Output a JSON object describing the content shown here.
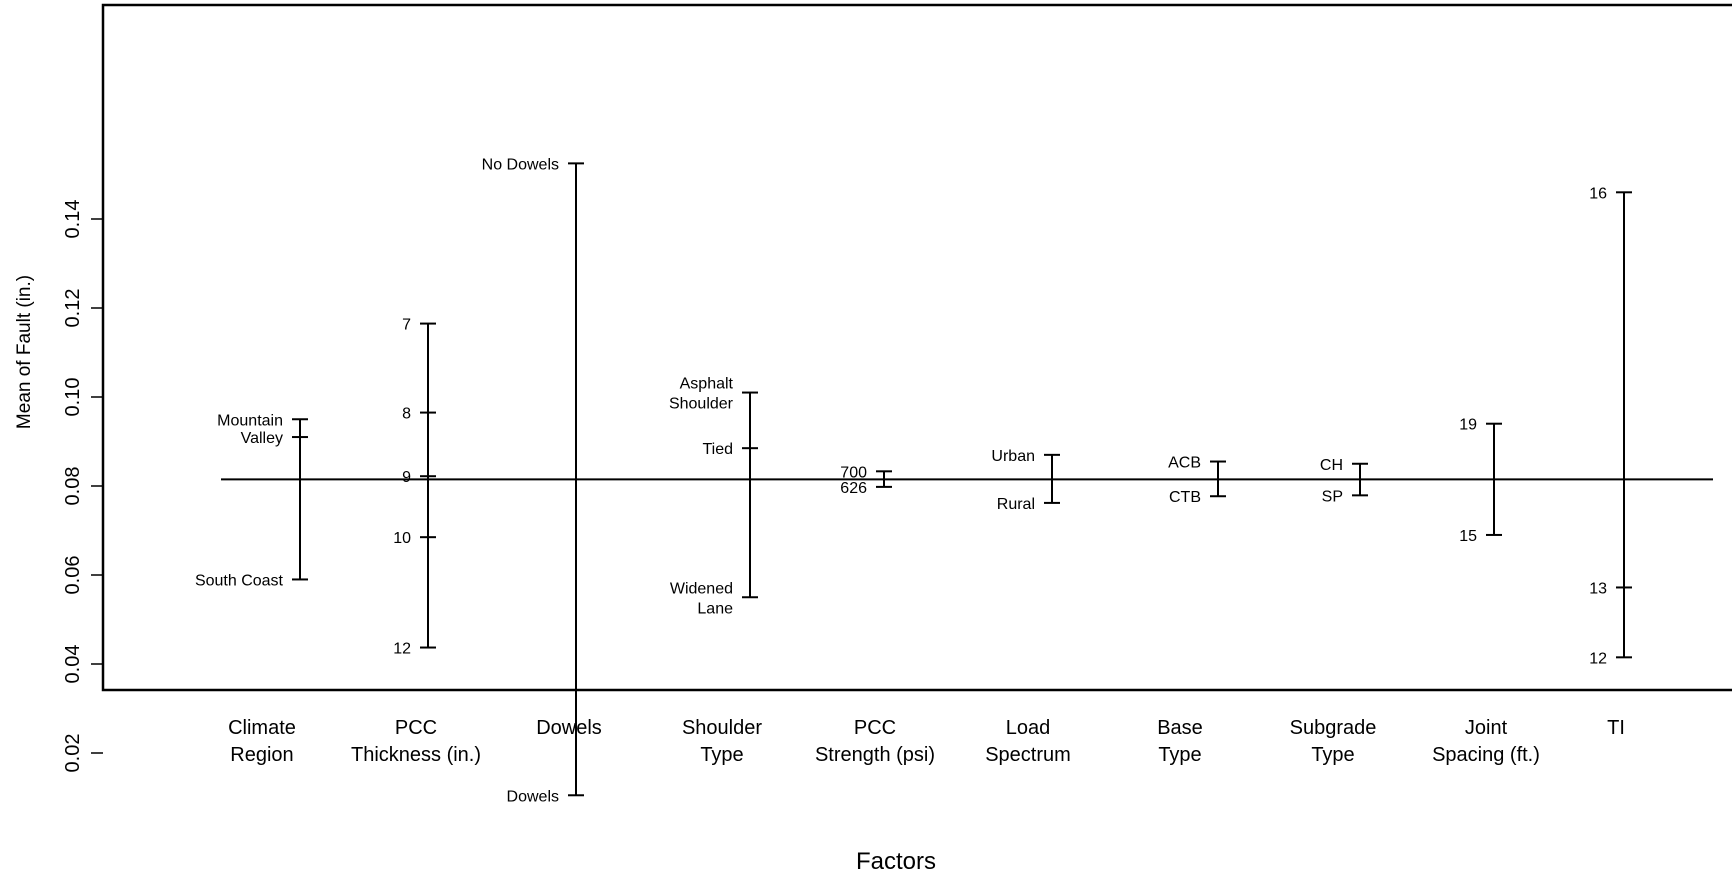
{
  "chart_data": {
    "type": "main-effects",
    "title": "",
    "xlabel": "Factors",
    "ylabel": "Mean of Fault (in.)",
    "ylim": [
      0.0,
      0.155
    ],
    "y_ticks": [
      "0.02",
      "0.04",
      "0.06",
      "0.08",
      "0.10",
      "0.12",
      "0.14"
    ],
    "y_tick_values": [
      0.02,
      0.04,
      0.06,
      0.08,
      0.1,
      0.12,
      0.14
    ],
    "grand_mean": 0.0815,
    "grid": false,
    "factors": [
      {
        "name_lines": [
          "Climate",
          "Region"
        ],
        "label_side": "left",
        "levels": [
          {
            "label_lines": [
              "Mountain"
            ],
            "value": 0.095
          },
          {
            "label_lines": [
              "Valley"
            ],
            "value": 0.091
          },
          {
            "label_lines": [
              "South Coast"
            ],
            "value": 0.059
          }
        ]
      },
      {
        "name_lines": [
          "PCC",
          "Thickness (in.)"
        ],
        "label_side": "left",
        "levels": [
          {
            "label_lines": [
              "7"
            ],
            "value": 0.1165
          },
          {
            "label_lines": [
              "8"
            ],
            "value": 0.0965
          },
          {
            "label_lines": [
              "9"
            ],
            "value": 0.0822
          },
          {
            "label_lines": [
              "10"
            ],
            "value": 0.0685
          },
          {
            "label_lines": [
              "12"
            ],
            "value": 0.0437
          }
        ]
      },
      {
        "name_lines": [
          "Dowels"
        ],
        "label_side": "left",
        "levels": [
          {
            "label_lines": [
              "No Dowels"
            ],
            "value": 0.1525
          },
          {
            "label_lines": [
              "Dowels"
            ],
            "value": 0.0105
          }
        ]
      },
      {
        "name_lines": [
          "Shoulder",
          "Type"
        ],
        "label_side": "left",
        "levels": [
          {
            "label_lines": [
              "Asphalt",
              "Shoulder"
            ],
            "value": 0.101
          },
          {
            "label_lines": [
              "Tied"
            ],
            "value": 0.0885
          },
          {
            "label_lines": [
              "Widened",
              "Lane"
            ],
            "value": 0.055
          }
        ]
      },
      {
        "name_lines": [
          "PCC",
          "Strength (psi)"
        ],
        "label_side": "left",
        "levels": [
          {
            "label_lines": [
              "700"
            ],
            "value": 0.0833
          },
          {
            "label_lines": [
              "626"
            ],
            "value": 0.0798
          }
        ]
      },
      {
        "name_lines": [
          "Load",
          "Spectrum"
        ],
        "label_side": "left",
        "levels": [
          {
            "label_lines": [
              "Urban"
            ],
            "value": 0.087
          },
          {
            "label_lines": [
              "Rural"
            ],
            "value": 0.0762
          }
        ]
      },
      {
        "name_lines": [
          "Base",
          "Type"
        ],
        "label_side": "left",
        "levels": [
          {
            "label_lines": [
              "ACB"
            ],
            "value": 0.0855
          },
          {
            "label_lines": [
              "CTB"
            ],
            "value": 0.0777
          }
        ]
      },
      {
        "name_lines": [
          "Subgrade",
          "Type"
        ],
        "label_side": "left",
        "levels": [
          {
            "label_lines": [
              "CH"
            ],
            "value": 0.085
          },
          {
            "label_lines": [
              "SP"
            ],
            "value": 0.0779
          }
        ]
      },
      {
        "name_lines": [
          "Joint",
          "Spacing (ft.)"
        ],
        "label_side": "left",
        "levels": [
          {
            "label_lines": [
              "19"
            ],
            "value": 0.094
          },
          {
            "label_lines": [
              "15"
            ],
            "value": 0.069
          }
        ]
      },
      {
        "name_lines": [
          "TI"
        ],
        "label_side": "left",
        "levels": [
          {
            "label_lines": [
              "16"
            ],
            "value": 0.146
          },
          {
            "label_lines": [
              "13"
            ],
            "value": 0.0572
          },
          {
            "label_lines": [
              "12"
            ],
            "value": 0.0415
          }
        ]
      }
    ]
  }
}
